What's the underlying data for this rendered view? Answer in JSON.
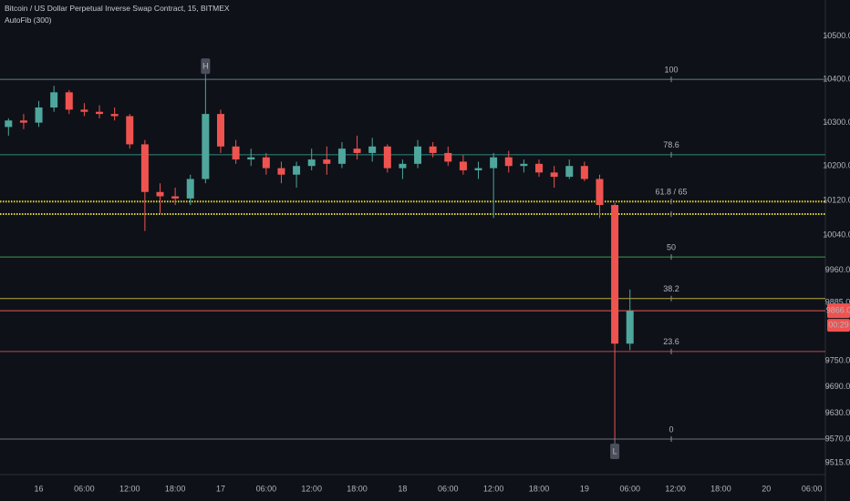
{
  "chart_data": {
    "type": "candlestick",
    "title": "Bitcoin / US Dollar Perpetual Inverse Swap Contract, 15, BITMEX",
    "subtitle": "AutoFib (300)",
    "categories": [
      null,
      null,
      "16",
      null,
      null,
      "06:00",
      null,
      null,
      "12:00",
      null,
      null,
      "18:00",
      null,
      null,
      "17",
      null,
      null,
      "06:00",
      null,
      null,
      "12:00",
      null,
      null,
      "18:00",
      null,
      null,
      "18",
      null,
      null,
      "06:00",
      null,
      null,
      "12:00",
      null,
      null,
      "18:00",
      null,
      null,
      "19",
      null,
      null,
      "06:00",
      null,
      null,
      "12:00",
      null,
      null,
      "18:00",
      null,
      null,
      "20",
      null,
      null,
      "06:00"
    ],
    "open": [
      10290,
      10305,
      10300,
      10335,
      10370,
      10330,
      10325,
      10320,
      10315,
      10250,
      10140,
      10130,
      10125,
      10170,
      10320,
      10245,
      10215,
      10220,
      10195,
      10180,
      10200,
      10215,
      10205,
      10240,
      10230,
      10245,
      10195,
      10205,
      10245,
      10230,
      10210,
      10190,
      10195,
      10220,
      10200,
      10205,
      10185,
      10175,
      10200,
      10170,
      10110,
      9790,
      null,
      null,
      null,
      null,
      null,
      null,
      null,
      null,
      null,
      null,
      null,
      null
    ],
    "high": [
      10310,
      10320,
      10350,
      10385,
      10375,
      10345,
      10340,
      10335,
      10320,
      10260,
      10160,
      10150,
      10180,
      10402,
      10330,
      10260,
      10240,
      10230,
      10210,
      10210,
      10240,
      10245,
      10255,
      10270,
      10265,
      10250,
      10215,
      10260,
      10255,
      10245,
      10225,
      10210,
      10230,
      10235,
      10215,
      10215,
      10200,
      10215,
      10210,
      10180,
      10115,
      9915,
      null,
      null,
      null,
      null,
      null,
      null,
      null,
      null,
      null,
      null,
      null,
      null
    ],
    "low": [
      10270,
      10285,
      10290,
      10325,
      10320,
      10315,
      10310,
      10305,
      10240,
      10050,
      10090,
      10110,
      10110,
      10160,
      10230,
      10205,
      10200,
      10180,
      10160,
      10150,
      10190,
      10180,
      10195,
      10215,
      10210,
      10185,
      10170,
      10195,
      10220,
      10200,
      10180,
      10170,
      10080,
      10185,
      10185,
      10175,
      10150,
      10170,
      10165,
      10080,
      9570,
      9775,
      null,
      null,
      null,
      null,
      null,
      null,
      null,
      null,
      null,
      null,
      null,
      null
    ],
    "close": [
      10305,
      10300,
      10335,
      10370,
      10330,
      10325,
      10320,
      10315,
      10250,
      10140,
      10130,
      10125,
      10170,
      10320,
      10245,
      10215,
      10220,
      10195,
      10180,
      10200,
      10215,
      10205,
      10240,
      10230,
      10245,
      10195,
      10205,
      10245,
      10230,
      10210,
      10190,
      10195,
      10220,
      10200,
      10205,
      10185,
      10175,
      10200,
      10170,
      10110,
      9790,
      9866,
      null,
      null,
      null,
      null,
      null,
      null,
      null,
      null,
      null,
      null,
      null,
      null
    ],
    "up_color": "#4fa69c",
    "down_color": "#ef5350",
    "ylim": [
      9490,
      10583
    ],
    "yticks": [
      {
        "value": 10500,
        "label": "10500.0"
      },
      {
        "value": 10400,
        "label": "10400.0"
      },
      {
        "value": 10300,
        "label": "10300.0"
      },
      {
        "value": 10200,
        "label": "10200.0"
      },
      {
        "value": 10120,
        "label": "10120.0"
      },
      {
        "value": 10040,
        "label": "10040.0"
      },
      {
        "value": 9960,
        "label": "9960.0"
      },
      {
        "value": 9885,
        "label": "9885.0"
      },
      {
        "value": 9750,
        "label": "9750.0"
      },
      {
        "value": 9690,
        "label": "9690.0"
      },
      {
        "value": 9630,
        "label": "9630.0"
      },
      {
        "value": 9570,
        "label": "9570.0"
      },
      {
        "value": 9515,
        "label": "9515.0"
      }
    ],
    "fib_levels": [
      {
        "label": "100",
        "values": [
          10400
        ],
        "color": "#5f7f82",
        "style": "solid"
      },
      {
        "label": "78.6",
        "values": [
          10226
        ],
        "color": "#2e8b7e",
        "style": "solid"
      },
      {
        "label": "61.8 / 65",
        "values": [
          10118,
          10089
        ],
        "color": "#e3d62b",
        "style": "dotted"
      },
      {
        "label": "50",
        "values": [
          9990
        ],
        "color": "#3a9e4a",
        "style": "solid"
      },
      {
        "label": "38.2",
        "values": [
          9894
        ],
        "color": "#b8a93a",
        "style": "solid"
      },
      {
        "label": "23.6",
        "values": [
          9772
        ],
        "color": "#c2444f",
        "style": "solid"
      },
      {
        "label": "0",
        "values": [
          9570
        ],
        "color": "#6d7278",
        "style": "solid"
      }
    ],
    "markers": {
      "high": "H",
      "low": "L"
    },
    "last_price": {
      "value": 9866,
      "label": "9866.0",
      "countdown": "00:29",
      "color": "#ef5350"
    }
  }
}
